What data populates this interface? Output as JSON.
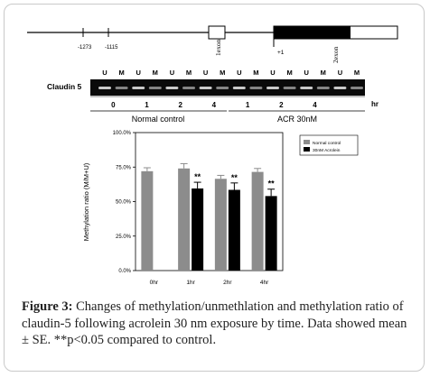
{
  "gene_map": {
    "positions": [
      "-1273",
      "-1115",
      "+1"
    ],
    "exon1_label": "1exon",
    "exon2_label": "2exon"
  },
  "gel": {
    "lane_labels": [
      "U",
      "M",
      "U",
      "M",
      "U",
      "M",
      "U",
      "M",
      "U",
      "M",
      "U",
      "M",
      "U",
      "M",
      "U",
      "M"
    ],
    "gene_label": "Claudin 5",
    "time_labels": [
      "0",
      "1",
      "2",
      "4",
      "1",
      "2",
      "4"
    ],
    "time_unit": "hr",
    "group_labels": [
      "Normal control",
      "ACR 30nM"
    ]
  },
  "chart_data": {
    "type": "bar",
    "ylabel": "Methylation ratio (M/M+U)",
    "ylim": [
      0,
      1.0
    ],
    "yticks": [
      "0.0%",
      "25.0%",
      "50.0%",
      "75.0%",
      "100.0%"
    ],
    "categories": [
      "0hr",
      "1hr",
      "2hr",
      "4hr"
    ],
    "series": [
      {
        "name": "Normal control",
        "color": "#8c8c8c",
        "values": [
          0.72,
          0.74,
          0.665,
          0.715
        ],
        "errors": [
          0.025,
          0.035,
          0.025,
          0.025
        ]
      },
      {
        "name": "30nM Acrolein",
        "color": "#000000",
        "values": [
          null,
          0.595,
          0.585,
          0.54
        ],
        "errors": [
          null,
          0.045,
          0.05,
          0.05
        ]
      }
    ],
    "annotations": [
      "**",
      "**",
      "**"
    ],
    "legend_position": "top-right"
  },
  "caption": {
    "label": "Figure 3:",
    "text": "Changes of methylation/unmethlation and methylation ratio of claudin-5 following acrolein 30 nm exposure by time. Data showed mean ± SE. **p<0.05 compared to control."
  }
}
